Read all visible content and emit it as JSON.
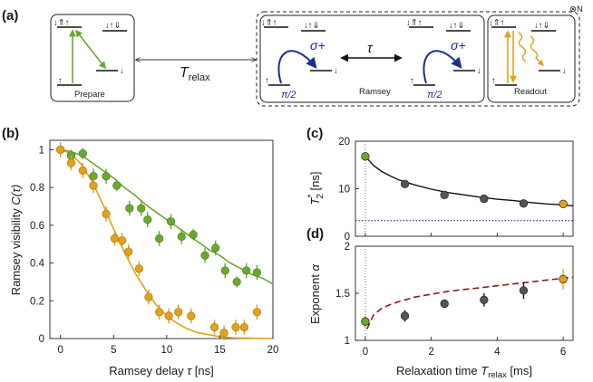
{
  "colors": {
    "green": "#6aa82f",
    "orange": "#e4a11b",
    "dark": "#555555",
    "fit_black": "#111111",
    "dashed_red": "#8b1a1a",
    "dotted_blue": "#2a36a8",
    "arrow_blue": "#1b2f8f"
  },
  "panel_a": {
    "label": "(a)",
    "prepare": "Prepare",
    "ramsey": "Ramsey",
    "readout": "Readout",
    "t_relax": "T",
    "t_relax_sub": "relax",
    "tau": "τ",
    "sigma_plus": "σ+",
    "pi_half": "π/2",
    "repeat": "⊗N",
    "level_top_left": "↓⇑↑",
    "level_top_right": "↓↑⇓",
    "level_up": "↑",
    "level_down": "↓"
  },
  "chart_data": [
    {
      "type": "scatter",
      "panel": "(b)",
      "xlabel": "Ramsey delay τ [ns]",
      "ylabel": "Ramsey visibility C(τ)",
      "xlim": [
        -1,
        20
      ],
      "ylim": [
        0,
        1.05
      ],
      "xticks": [
        0,
        5,
        10,
        15,
        20
      ],
      "yticks": [
        0,
        0.2,
        0.4,
        0.6,
        0.8,
        1
      ],
      "ytick_labels": [
        "0",
        "0.2",
        "0.4",
        "0.6",
        "0.8",
        "1"
      ],
      "series": [
        {
          "name": "green",
          "color": "green",
          "x": [
            0,
            1.0,
            2.1,
            3.1,
            4.3,
            5.3,
            6.5,
            7.6,
            8.2,
            9.3,
            10.4,
            11.4,
            12.5,
            13.6,
            14.6,
            15.5,
            16.6,
            17.5,
            18.5
          ],
          "y": [
            1.0,
            0.97,
            0.98,
            0.86,
            0.86,
            0.81,
            0.69,
            0.69,
            0.63,
            0.53,
            0.62,
            0.54,
            0.55,
            0.44,
            0.48,
            0.36,
            0.3,
            0.36,
            0.35
          ],
          "err": [
            0.03,
            0.03,
            0.03,
            0.04,
            0.04,
            0.03,
            0.04,
            0.04,
            0.04,
            0.04,
            0.04,
            0.04,
            0.03,
            0.04,
            0.04,
            0.04,
            0.03,
            0.04,
            0.04
          ],
          "fit_x": [
            0,
            1,
            2,
            3,
            4,
            5,
            6,
            7,
            8,
            9,
            10,
            11,
            12,
            13,
            14,
            15,
            16,
            17,
            18,
            19,
            20
          ],
          "fit_y": [
            1.0,
            0.99,
            0.97,
            0.93,
            0.89,
            0.85,
            0.8,
            0.76,
            0.71,
            0.67,
            0.63,
            0.59,
            0.55,
            0.51,
            0.47,
            0.44,
            0.4,
            0.37,
            0.34,
            0.32,
            0.29
          ]
        },
        {
          "name": "orange",
          "color": "orange",
          "x": [
            0,
            1.0,
            2.1,
            3.1,
            4.3,
            5.1,
            5.8,
            6.4,
            7.4,
            8.3,
            9.3,
            10.2,
            11.1,
            12.3,
            14.5,
            15.4,
            16.5,
            17.3,
            18.5
          ],
          "y": [
            1.0,
            0.93,
            0.89,
            0.81,
            0.66,
            0.53,
            0.52,
            0.46,
            0.37,
            0.22,
            0.14,
            0.12,
            0.14,
            0.12,
            0.06,
            0.03,
            0.06,
            0.06,
            0.14
          ],
          "err": [
            0.04,
            0.04,
            0.04,
            0.04,
            0.04,
            0.04,
            0.04,
            0.04,
            0.04,
            0.04,
            0.04,
            0.04,
            0.04,
            0.04,
            0.04,
            0.04,
            0.04,
            0.04,
            0.04
          ],
          "fit_x": [
            0,
            1,
            2,
            3,
            4,
            5,
            6,
            7,
            8,
            9,
            10,
            11,
            12,
            13,
            14,
            15,
            16,
            17,
            18,
            19,
            20
          ],
          "fit_y": [
            1.0,
            0.98,
            0.92,
            0.83,
            0.71,
            0.58,
            0.46,
            0.35,
            0.26,
            0.18,
            0.12,
            0.08,
            0.05,
            0.03,
            0.02,
            0.01,
            0.005,
            0.003,
            0.002,
            0.001,
            0.0
          ]
        }
      ]
    },
    {
      "type": "scatter",
      "panel": "(c)",
      "ylabel": "T*2 [ns]",
      "xlim": [
        -0.3,
        6.3
      ],
      "ylim": [
        0,
        20
      ],
      "yticks": [
        0,
        10,
        20
      ],
      "points": {
        "x": [
          0,
          1.2,
          2.4,
          3.6,
          4.8,
          6.0
        ],
        "y": [
          16.8,
          11.0,
          8.7,
          7.9,
          6.9,
          6.8
        ],
        "colors": [
          "green",
          "dark",
          "dark",
          "dark",
          "dark",
          "orange"
        ]
      },
      "fit_x": [
        0,
        0.25,
        0.5,
        0.75,
        1,
        1.5,
        2,
        2.5,
        3,
        3.5,
        4,
        4.5,
        5,
        5.5,
        6,
        6.3
      ],
      "fit_y": [
        16.8,
        14.9,
        13.6,
        12.7,
        11.9,
        10.8,
        9.9,
        9.2,
        8.7,
        8.2,
        7.8,
        7.5,
        7.1,
        6.8,
        6.6,
        6.4
      ],
      "baseline_y": 3.3
    },
    {
      "type": "scatter",
      "panel": "(d)",
      "xlabel": "Relaxation time T_relax [ms]",
      "ylabel": "Exponent α",
      "xlim": [
        -0.3,
        6.3
      ],
      "ylim": [
        1,
        2
      ],
      "xticks": [
        0,
        2,
        4,
        6
      ],
      "yticks": [
        1,
        1.5,
        2
      ],
      "ytick_labels": [
        "1",
        "1.5",
        "2"
      ],
      "points": {
        "x": [
          0,
          1.2,
          2.4,
          3.6,
          4.8,
          6.0
        ],
        "y": [
          1.2,
          1.26,
          1.39,
          1.43,
          1.53,
          1.65
        ],
        "err": [
          0.06,
          0.06,
          0.03,
          0.07,
          0.09,
          0.11
        ],
        "colors": [
          "green",
          "dark",
          "dark",
          "dark",
          "dark",
          "orange"
        ]
      },
      "fit_x": [
        0.05,
        0.25,
        0.5,
        0.75,
        1,
        1.5,
        2,
        2.5,
        3,
        3.5,
        4,
        4.5,
        5,
        5.5,
        6,
        6.3
      ],
      "fit_y": [
        1.12,
        1.27,
        1.34,
        1.38,
        1.41,
        1.46,
        1.49,
        1.52,
        1.54,
        1.56,
        1.58,
        1.6,
        1.62,
        1.64,
        1.66,
        1.67
      ]
    }
  ],
  "panel_labels": {
    "b": "(b)",
    "c": "(c)",
    "d": "(d)"
  },
  "axis_text": {
    "b_xlabel": "Ramsey delay",
    "b_xvar": "τ",
    "b_xunit": "[ns]",
    "b_ylabel": "Ramsey visibility",
    "b_yvar": "C(τ)",
    "c_ylabel_T": "T",
    "c_ylabel_sup": "*",
    "c_ylabel_sub": "2",
    "c_ylabel_unit": "[ns]",
    "d_ylabel": "Exponent",
    "d_yvar": "α",
    "d_xlabel": "Relaxation time",
    "d_xvar": "T",
    "d_xsub": "relax",
    "d_xunit": "[ms]",
    "c_yticks": [
      "0",
      "10",
      "20"
    ]
  }
}
